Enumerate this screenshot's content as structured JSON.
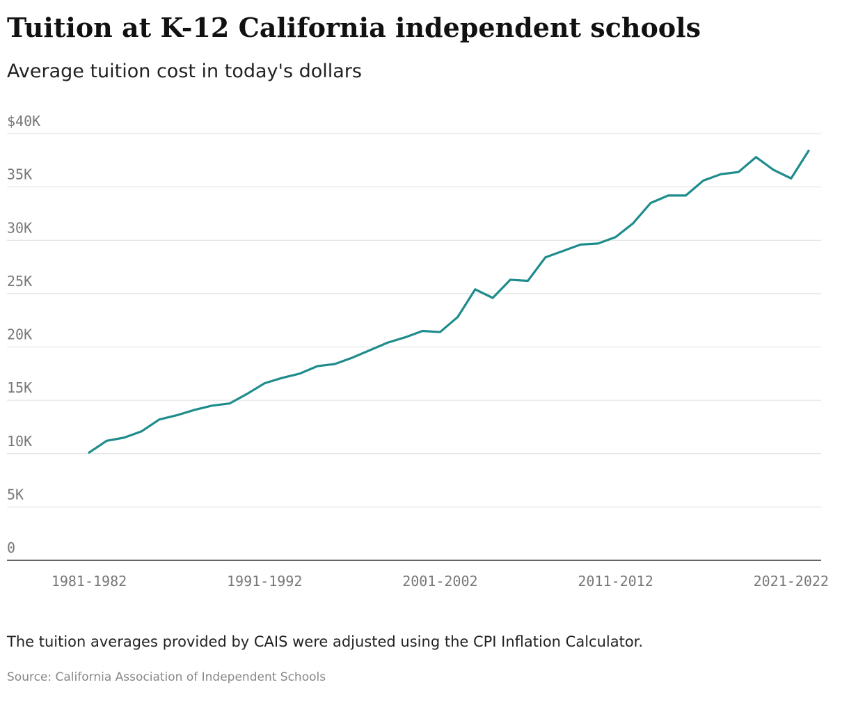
{
  "chart_data": {
    "type": "line",
    "title": "Tuition at K-12 California independent schools",
    "subtitle": "Average tuition cost in today's dollars",
    "note": "The tuition averages provided by CAIS were adjusted using the CPI Inflation Calculator.",
    "source": "Source: California Association of Independent Schools",
    "categories": [
      "1981-1982",
      null,
      null,
      null,
      null,
      null,
      null,
      null,
      null,
      null,
      "1991-1992",
      null,
      null,
      null,
      null,
      null,
      null,
      null,
      null,
      null,
      "2001-2002",
      null,
      null,
      null,
      null,
      null,
      null,
      null,
      null,
      null,
      "2011-2012",
      null,
      null,
      null,
      null,
      null,
      null,
      null,
      null,
      null,
      "2021-2022",
      null
    ],
    "series": [
      {
        "name": "Average tuition",
        "color": "#1f8c8c",
        "values": [
          10100,
          11200,
          11500,
          12100,
          13200,
          13600,
          14100,
          14500,
          14700,
          15600,
          16600,
          17100,
          17500,
          18200,
          18400,
          19000,
          19700,
          20400,
          20900,
          21500,
          21400,
          22800,
          25400,
          24600,
          26300,
          26200,
          28400,
          29000,
          29600,
          29700,
          30300,
          31600,
          33500,
          34200,
          34200,
          35600,
          36200,
          36400,
          37800,
          36600,
          35800,
          38400
        ]
      }
    ],
    "ylim": [
      0,
      40000
    ],
    "yticks": [
      0,
      {
        "value": 5000,
        "label": "5K"
      },
      {
        "value": 10000,
        "label": "10K"
      },
      {
        "value": 15000,
        "label": "15K"
      },
      {
        "value": 20000,
        "label": "20K"
      },
      {
        "value": 25000,
        "label": "25K"
      },
      {
        "value": 30000,
        "label": "30K"
      },
      {
        "value": 35000,
        "label": "35K"
      },
      {
        "value": 40000,
        "label": "$40K"
      }
    ],
    "grid": true
  }
}
